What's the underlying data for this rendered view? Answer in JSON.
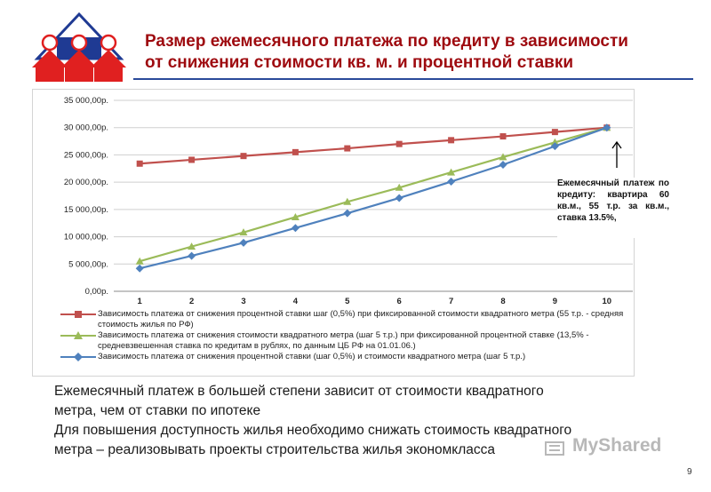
{
  "title": {
    "line1": "Размер ежемесячного платежа по кредиту в зависимости",
    "line2": "от снижения стоимости кв. м. и процентной ставки"
  },
  "colors": {
    "title": "#9e0a0f",
    "logo_red": "#e02020",
    "logo_blue": "#1f3a93",
    "rule": "#2a4a9a"
  },
  "chart_data": {
    "type": "line",
    "categories": [
      "1",
      "2",
      "3",
      "4",
      "5",
      "6",
      "7",
      "8",
      "9",
      "10"
    ],
    "y_ticks": [
      "0,00р.",
      "5 000,00р.",
      "10 000,00р.",
      "15 000,00р.",
      "20 000,00р.",
      "25 000,00р.",
      "30 000,00р.",
      "35 000,00р."
    ],
    "ylim": [
      0,
      35000
    ],
    "grid": true,
    "legend_position": "bottom",
    "series": [
      {
        "name": "Зависимость платежа от снижения процентной ставки шаг (0,5%) при фиксированной стоимости квадратного метра (55 т.р. - средняя стоимость жилья по РФ)",
        "color": "#c0504d",
        "marker": "square",
        "values": [
          23400,
          24100,
          24800,
          25500,
          26200,
          27000,
          27700,
          28400,
          29200,
          30000
        ]
      },
      {
        "name": "Зависимость платежа от снижения стоимости квадратного метра (шаг 5 т.р.) при фиксированной процентной ставке (13,5% - средневзвешенная ставка по кредитам в рублях, по данным ЦБ РФ на 01.01.06.)",
        "color": "#9bbb59",
        "marker": "triangle",
        "values": [
          5500,
          8200,
          10800,
          13600,
          16400,
          19000,
          21800,
          24600,
          27300,
          30000
        ]
      },
      {
        "name": "Зависимость платежа от снижения процентной ставки (шаг 0,5%) и стоимости квадратного метра (шаг 5 т.р.)",
        "color": "#4f81bd",
        "marker": "diamond",
        "values": [
          4200,
          6500,
          8900,
          11600,
          14300,
          17100,
          20100,
          23200,
          26600,
          30000
        ]
      }
    ],
    "annotation": "Ежемесячный платеж по кредиту: квартира 60 кв.м., 55 т.р. за кв.м., ставка 13.5%,"
  },
  "body_text": {
    "line1": "Ежемесячный платеж в большей степени зависит от стоимости квадратного",
    "line2": "метра, чем от ставки по ипотеке",
    "line3": "Для повышения доступность жилья необходимо снижать стоимость квадратного",
    "line4": "метра – реализовывать проекты строительства жилья экономкласса"
  },
  "watermark": "MyShared",
  "page_number": "9"
}
